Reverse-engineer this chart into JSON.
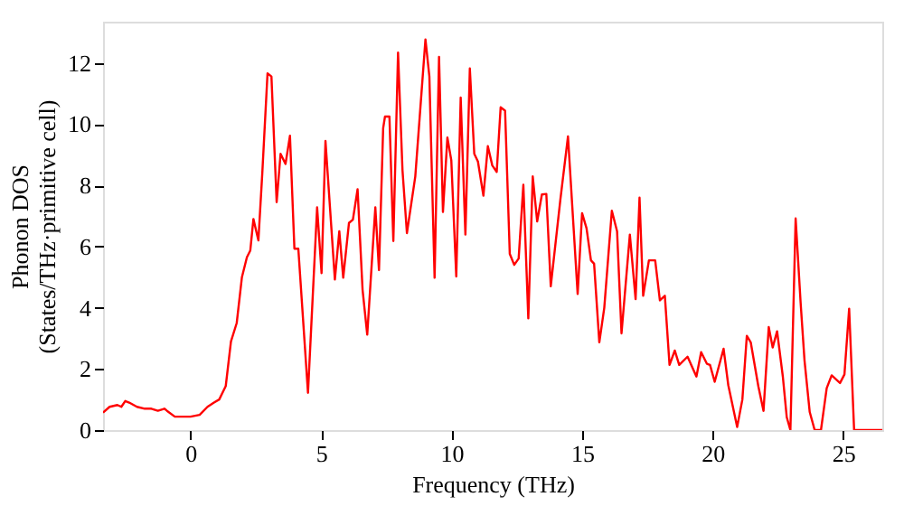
{
  "chart_data": {
    "type": "line",
    "xlabel": "Frequency (THz)",
    "ylabel": "Phonon DOS\n(States/THz·primitive cell)",
    "xlim": [
      -3.35,
      26.5
    ],
    "ylim": [
      0,
      13.35
    ],
    "xticks": [
      0,
      5,
      10,
      15,
      20,
      25
    ],
    "yticks": [
      0,
      2,
      4,
      6,
      8,
      10,
      12
    ],
    "grid": false,
    "line_style": "solid",
    "marker": "none",
    "x": [
      -3.35,
      -3.1,
      -2.8,
      -2.65,
      -2.5,
      -2.35,
      -2.05,
      -1.75,
      -1.5,
      -1.25,
      -1.0,
      -0.9,
      -0.6,
      -0.35,
      0.0,
      0.35,
      0.65,
      0.9,
      1.1,
      1.35,
      1.55,
      1.77,
      1.97,
      2.16,
      2.29,
      2.41,
      2.6,
      2.75,
      2.95,
      3.1,
      3.3,
      3.45,
      3.64,
      3.81,
      3.98,
      4.13,
      4.5,
      4.85,
      5.02,
      5.17,
      5.53,
      5.7,
      5.85,
      6.07,
      6.22,
      6.4,
      6.59,
      6.77,
      7.08,
      7.22,
      7.38,
      7.45,
      7.62,
      7.77,
      7.95,
      8.12,
      8.29,
      8.61,
      9.0,
      9.15,
      9.35,
      9.52,
      9.67,
      9.84,
      9.99,
      10.18,
      10.35,
      10.53,
      10.7,
      10.87,
      11.01,
      11.22,
      11.39,
      11.56,
      11.73,
      11.88,
      12.05,
      12.23,
      12.4,
      12.57,
      12.75,
      12.94,
      13.11,
      13.28,
      13.46,
      13.63,
      13.8,
      14.17,
      14.46,
      14.83,
      15.0,
      15.17,
      15.34,
      15.46,
      15.66,
      15.85,
      16.14,
      16.34,
      16.51,
      16.83,
      17.05,
      17.2,
      17.34,
      17.56,
      17.8,
      17.98,
      18.17,
      18.35,
      18.55,
      18.72,
      19.04,
      19.38,
      19.56,
      19.78,
      19.9,
      20.08,
      20.42,
      20.6,
      20.94,
      21.14,
      21.31,
      21.46,
      21.75,
      21.95,
      22.15,
      22.3,
      22.47,
      22.69,
      22.84,
      22.98,
      23.18,
      23.37,
      23.52,
      23.72,
      23.91,
      24.15,
      24.37,
      24.56,
      24.88,
      25.05,
      25.23,
      25.42,
      26.5
    ],
    "series": [
      {
        "color": "#ff0000",
        "values": [
          0.57,
          0.76,
          0.82,
          0.76,
          0.95,
          0.9,
          0.76,
          0.7,
          0.7,
          0.63,
          0.7,
          0.63,
          0.44,
          0.44,
          0.44,
          0.5,
          0.76,
          0.9,
          1.0,
          1.44,
          2.9,
          3.5,
          5.0,
          5.65,
          5.87,
          6.9,
          6.2,
          8.4,
          11.66,
          11.56,
          7.45,
          9.03,
          8.7,
          9.62,
          5.93,
          5.93,
          1.22,
          7.28,
          5.13,
          9.45,
          4.92,
          6.5,
          4.98,
          6.77,
          6.88,
          7.87,
          4.6,
          3.12,
          7.28,
          5.23,
          9.87,
          10.25,
          10.25,
          6.18,
          12.34,
          8.5,
          6.44,
          8.29,
          12.77,
          11.56,
          4.98,
          12.2,
          7.13,
          9.56,
          8.82,
          5.02,
          10.87,
          6.39,
          11.82,
          9.03,
          8.78,
          7.66,
          9.28,
          8.65,
          8.44,
          10.55,
          10.44,
          5.76,
          5.4,
          5.61,
          8.02,
          3.65,
          8.29,
          6.82,
          7.7,
          7.72,
          4.7,
          7.55,
          9.6,
          4.45,
          7.09,
          6.6,
          5.55,
          5.44,
          2.87,
          4.0,
          7.17,
          6.5,
          3.16,
          6.39,
          4.28,
          7.6,
          4.39,
          5.55,
          5.55,
          4.24,
          4.39,
          2.13,
          2.6,
          2.13,
          2.4,
          1.75,
          2.55,
          2.17,
          2.13,
          1.58,
          2.66,
          1.47,
          0.1,
          1.0,
          3.08,
          2.87,
          1.44,
          0.63,
          3.37,
          2.7,
          3.23,
          1.75,
          0.42,
          0.0,
          6.92,
          4.18,
          2.28,
          0.59,
          0.0,
          0.0,
          1.37,
          1.79,
          1.54,
          1.82,
          3.97,
          0.0,
          0.0
        ]
      }
    ]
  }
}
